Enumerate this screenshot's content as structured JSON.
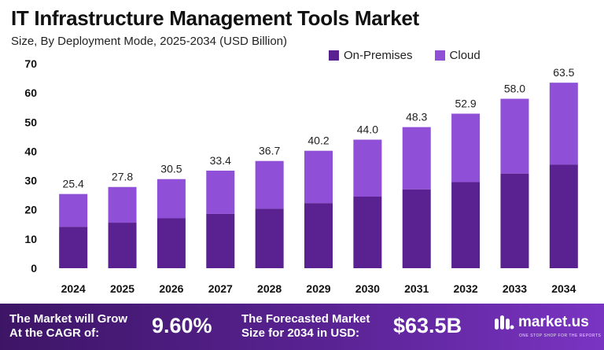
{
  "title": "IT Infrastructure Management Tools Market",
  "subtitle": "Size, By Deployment Mode, 2025-2034 (USD Billion)",
  "colors": {
    "on_premises": "#5a2190",
    "cloud": "#8f4fd6",
    "footer_start": "#3d1566",
    "footer_end": "#7a34c2"
  },
  "chart_data": {
    "type": "bar",
    "stacked": true,
    "categories": [
      "2024",
      "2025",
      "2026",
      "2027",
      "2028",
      "2029",
      "2030",
      "2031",
      "2032",
      "2033",
      "2034"
    ],
    "series": [
      {
        "name": "On-Premises",
        "values": [
          14.2,
          15.6,
          17.1,
          18.6,
          20.4,
          22.3,
          24.5,
          27.0,
          29.5,
          32.4,
          35.5
        ]
      },
      {
        "name": "Cloud",
        "values": [
          11.2,
          12.2,
          13.4,
          14.8,
          16.3,
          17.9,
          19.5,
          21.3,
          23.4,
          25.6,
          28.0
        ]
      }
    ],
    "totals": [
      "25.4",
      "27.8",
      "30.5",
      "33.4",
      "36.7",
      "40.2",
      "44.0",
      "48.3",
      "52.9",
      "58.0",
      "63.5"
    ],
    "ylim": [
      0,
      70
    ],
    "yticks": [
      "0",
      "10",
      "20",
      "30",
      "40",
      "50",
      "60",
      "70"
    ],
    "grid": false,
    "legend_position": "top-right"
  },
  "footer": {
    "cagr_label_line1": "The Market will Grow",
    "cagr_label_line2": "At the CAGR of:",
    "cagr_value": "9.60%",
    "forecast_label_line1": "The Forecasted Market",
    "forecast_label_line2": "Size for 2034 in USD:",
    "forecast_value": "$63.5B",
    "logo_name": "market.us",
    "logo_tagline": "ONE STOP SHOP FOR THE REPORTS",
    "logo_icon": "market-us-logo-icon"
  }
}
